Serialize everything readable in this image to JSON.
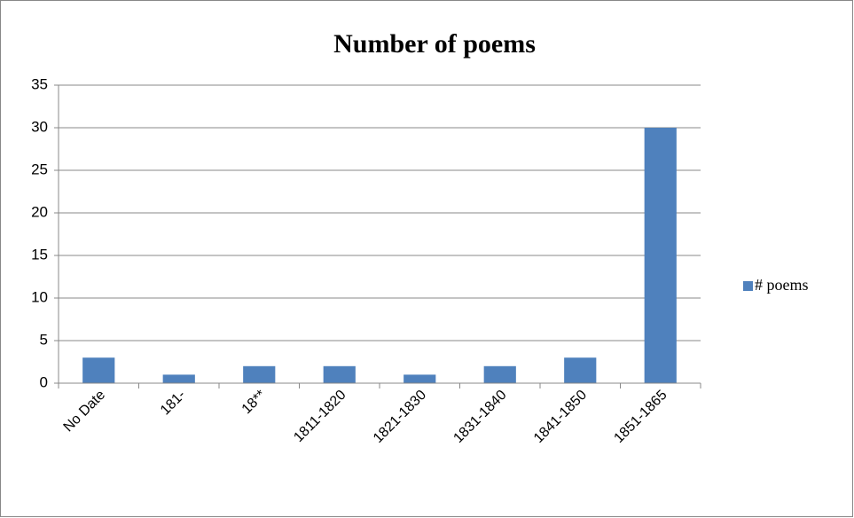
{
  "chart_data": {
    "type": "bar",
    "title": "Number of poems",
    "categories": [
      "No Date",
      "181-",
      "18**",
      "1811-1820",
      "1821-1830",
      "1831-1840",
      "1841-1850",
      "1851-1865"
    ],
    "series": [
      {
        "name": "# poems",
        "color": "#4f81bd",
        "values": [
          3,
          1,
          2,
          2,
          1,
          2,
          3,
          30
        ]
      }
    ],
    "ylim": [
      0,
      35
    ],
    "yticks": [
      0,
      5,
      10,
      15,
      20,
      25,
      30,
      35
    ],
    "grid": true,
    "legend": "right"
  }
}
